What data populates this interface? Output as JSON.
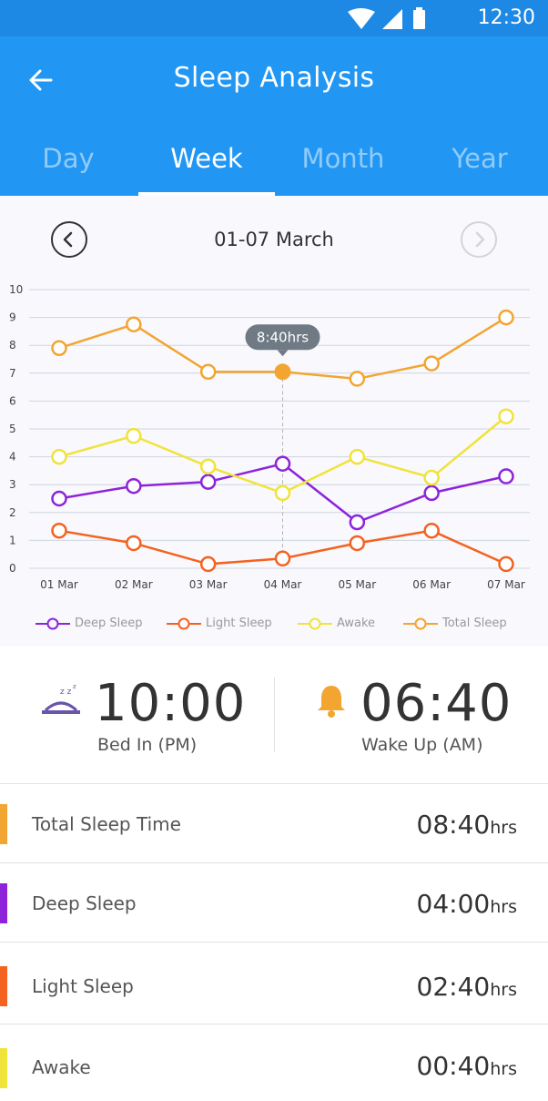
{
  "status_bar": {
    "time": "12:30"
  },
  "header": {
    "title": "Sleep Analysis"
  },
  "tabs": [
    {
      "label": "Day",
      "active": false
    },
    {
      "label": "Week",
      "active": true
    },
    {
      "label": "Month",
      "active": false
    },
    {
      "label": "Year",
      "active": false
    }
  ],
  "date_range": "01-07 March",
  "tooltip": "8:40hrs",
  "colors": {
    "deep": "#8e24d9",
    "light": "#f4621f",
    "awake": "#f0e33a",
    "total": "#f2a530",
    "primary": "#2196f3"
  },
  "chart_data": {
    "type": "line",
    "x": [
      "01 Mar",
      "02 Mar",
      "03 Mar",
      "04 Mar",
      "05 Mar",
      "06 Mar",
      "07 Mar"
    ],
    "y_ticks": [
      "0",
      "1",
      "2",
      "3",
      "4",
      "5",
      "6",
      "7",
      "8",
      "9",
      "10"
    ],
    "ylim": [
      0,
      10
    ],
    "grid": true,
    "legend_position": "bottom",
    "highlight_index": 3,
    "series": [
      {
        "name": "Deep Sleep",
        "color": "#8e24d9",
        "values": [
          2.5,
          2.95,
          3.1,
          3.75,
          1.65,
          2.7,
          3.3
        ]
      },
      {
        "name": "Light Sleep",
        "color": "#f4621f",
        "values": [
          1.35,
          0.9,
          0.15,
          0.35,
          0.9,
          1.35,
          0.15
        ]
      },
      {
        "name": "Awake",
        "color": "#f0e33a",
        "values": [
          4.0,
          4.75,
          3.65,
          2.7,
          4.0,
          3.25,
          5.45
        ]
      },
      {
        "name": "Total Sleep",
        "color": "#f2a530",
        "values": [
          7.9,
          8.75,
          7.05,
          7.05,
          6.8,
          7.35,
          9.0
        ]
      }
    ]
  },
  "summary": {
    "bed_in_time": "10:00",
    "bed_in_label": "Bed In (PM)",
    "wake_up_time": "06:40",
    "wake_up_label": "Wake Up (AM)"
  },
  "stats": [
    {
      "label": "Total Sleep Time",
      "value": "08:40",
      "unit": "hrs",
      "color": "#f2a530"
    },
    {
      "label": "Deep Sleep",
      "value": "04:00",
      "unit": "hrs",
      "color": "#8e24d9"
    },
    {
      "label": "Light Sleep",
      "value": "02:40",
      "unit": "hrs",
      "color": "#f4621f"
    },
    {
      "label": "Awake",
      "value": "00:40",
      "unit": "hrs",
      "color": "#f0e33a"
    }
  ]
}
